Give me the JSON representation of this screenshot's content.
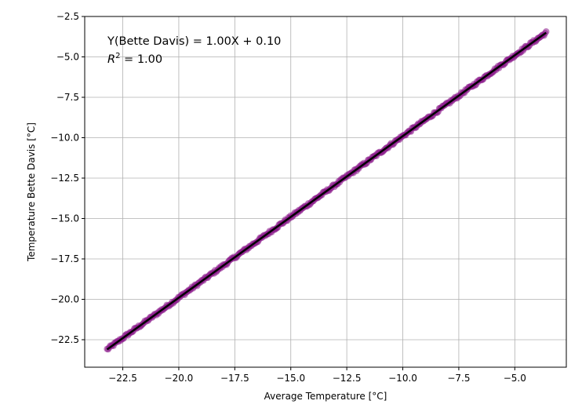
{
  "chart_data": {
    "type": "scatter",
    "title": "",
    "xlabel": "Average Temperature [°C]",
    "ylabel": "Temperature Bette Davis [°C]",
    "xlim": [
      -24.2,
      -2.7
    ],
    "ylim": [
      -24.2,
      -2.5
    ],
    "xticks": [
      -22.5,
      -20.0,
      -17.5,
      -15.0,
      -12.5,
      -10.0,
      -7.5,
      -5.0
    ],
    "yticks": [
      -22.5,
      -20.0,
      -17.5,
      -15.0,
      -12.5,
      -10.0,
      -7.5,
      -5.0,
      -2.5
    ],
    "xtick_labels": [
      "−22.5",
      "−20.0",
      "−17.5",
      "−15.0",
      "−12.5",
      "−10.0",
      "−7.5",
      "−5.0"
    ],
    "ytick_labels": [
      "−22.5",
      "−20.0",
      "−17.5",
      "−15.0",
      "−12.5",
      "−10.0",
      "−7.5",
      "−5.0",
      "−2.5"
    ],
    "grid": true,
    "point_color": "#8b1a8b",
    "line_color": "#000000",
    "fit": {
      "slope": 1.0,
      "intercept": 0.1
    },
    "x_range": [
      -23.2,
      -3.6
    ],
    "annotation_line1": "Y(Bette Davis) = 1.00X + 0.10",
    "annotation_line2_prefix": "R",
    "annotation_line2_sup": "2",
    "annotation_line2_suffix": " = 1.00"
  }
}
